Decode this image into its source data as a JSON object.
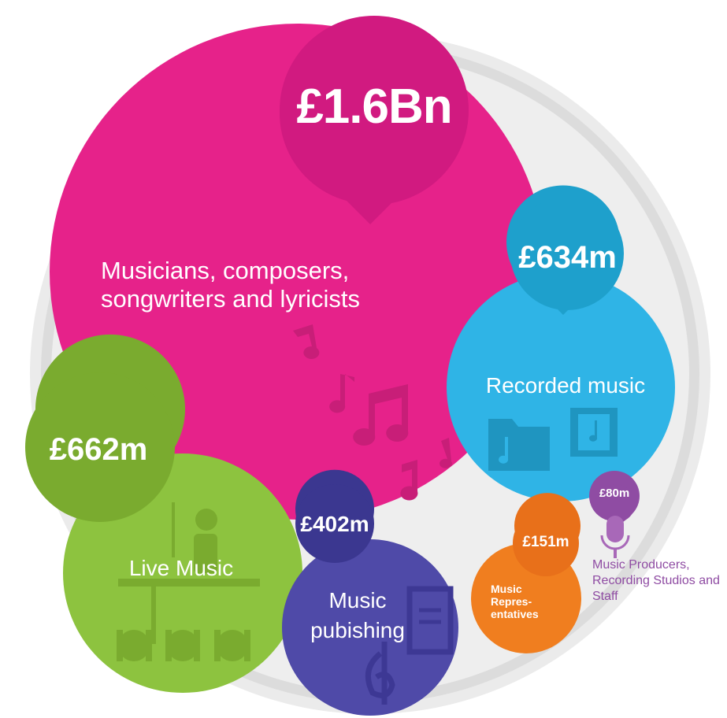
{
  "colors": {
    "ring_outer": "#e6e6e6",
    "ring_inner": "#d8d8d8",
    "musicians": "#e6228a",
    "musicians_badge": "#d11a80",
    "recorded": "#2fb4e6",
    "recorded_badge": "#1ea0cc",
    "live": "#8dc33f",
    "live_badge": "#7aab2f",
    "publishing": "#4f4aa8",
    "publishing_badge": "#3b3790",
    "representatives": "#f07e1f",
    "producers": "#8f4ca3"
  },
  "segments": [
    {
      "id": "musicians",
      "value": "£1.6Bn",
      "label": "Musicians, composers, songwriters and lyricists"
    },
    {
      "id": "recorded",
      "value": "£634m",
      "label": "Recorded music"
    },
    {
      "id": "live",
      "value": "£662m",
      "label": "Live Music"
    },
    {
      "id": "publishing",
      "value": "£402m",
      "label": "Music pubishing"
    },
    {
      "id": "representatives",
      "value": "£151m",
      "label": "Music Repres-entatives"
    },
    {
      "id": "producers",
      "value": "£80m",
      "label": "Music Producers, Recording Studios and Staff"
    }
  ],
  "icons": [
    "music-note-icon",
    "folder-music-icon",
    "music-file-icon",
    "guitarist-icon",
    "crowd-icon",
    "treble-clef-icon",
    "document-icon",
    "microphone-icon"
  ]
}
